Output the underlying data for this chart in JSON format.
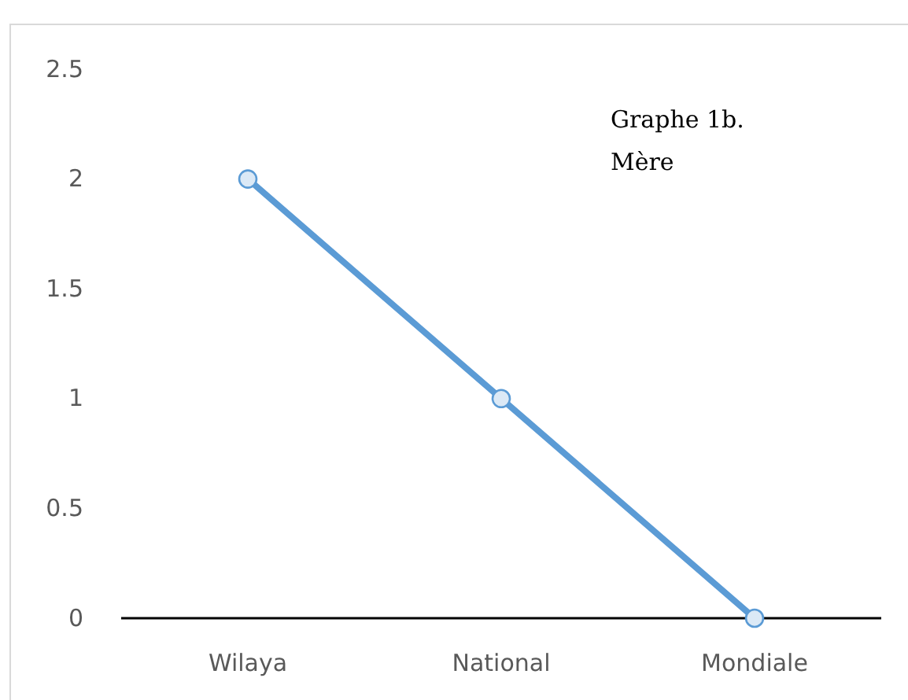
{
  "chart_data": {
    "type": "line",
    "title": "Graphe 1b. Mère",
    "categories": [
      "Wilaya",
      "National",
      "Mondiale"
    ],
    "series": [
      {
        "color": "#5b9bd5",
        "values": [
          2,
          1,
          0
        ]
      }
    ],
    "ylim": [
      0,
      2.5
    ],
    "yticks": [
      0,
      0.5,
      1,
      1.5,
      2,
      2.5
    ],
    "grid": false,
    "marker": "circle",
    "line_style": "solid"
  }
}
